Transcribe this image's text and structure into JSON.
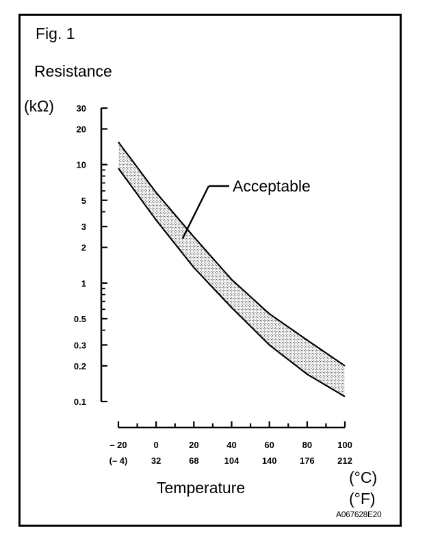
{
  "chart_data": {
    "type": "area",
    "figure_label": "Fig. 1",
    "ylabel": "Resistance",
    "ylabel_unit": "(kΩ)",
    "xlabel": "Temperature",
    "x_unit_c": "(°C)",
    "x_unit_f": "(°F)",
    "annotation": "Acceptable",
    "code": "A067628E20",
    "y_scale": "log",
    "ylim": [
      0.1,
      30
    ],
    "xlim": [
      -20,
      100
    ],
    "y_ticks": [
      {
        "value": 30,
        "label": "30"
      },
      {
        "value": 20,
        "label": "20"
      },
      {
        "value": 10,
        "label": "10"
      },
      {
        "value": 5,
        "label": "5"
      },
      {
        "value": 3,
        "label": "3"
      },
      {
        "value": 2,
        "label": "2"
      },
      {
        "value": 1,
        "label": "1"
      },
      {
        "value": 0.5,
        "label": "0.5"
      },
      {
        "value": 0.3,
        "label": "0.3"
      },
      {
        "value": 0.2,
        "label": "0.2"
      },
      {
        "value": 0.1,
        "label": "0.1"
      }
    ],
    "x_ticks": [
      {
        "c": -20,
        "c_label": "– 20",
        "f_label": "(– 4)"
      },
      {
        "c": 0,
        "c_label": "0",
        "f_label": "32"
      },
      {
        "c": 20,
        "c_label": "20",
        "f_label": "68"
      },
      {
        "c": 40,
        "c_label": "40",
        "f_label": "104"
      },
      {
        "c": 60,
        "c_label": "60",
        "f_label": "140"
      },
      {
        "c": 80,
        "c_label": "80",
        "f_label": "176"
      },
      {
        "c": 100,
        "c_label": "100",
        "f_label": "212"
      }
    ],
    "series": [
      {
        "x": [
          -20,
          0,
          20,
          40,
          60,
          80,
          100
        ],
        "y": [
          15.5,
          5.8,
          2.45,
          1.07,
          0.55,
          0.33,
          0.2
        ]
      },
      {
        "x": [
          -20,
          0,
          20,
          40,
          60,
          80,
          100
        ],
        "y": [
          9.3,
          3.4,
          1.35,
          0.62,
          0.3,
          0.17,
          0.11
        ]
      }
    ]
  }
}
